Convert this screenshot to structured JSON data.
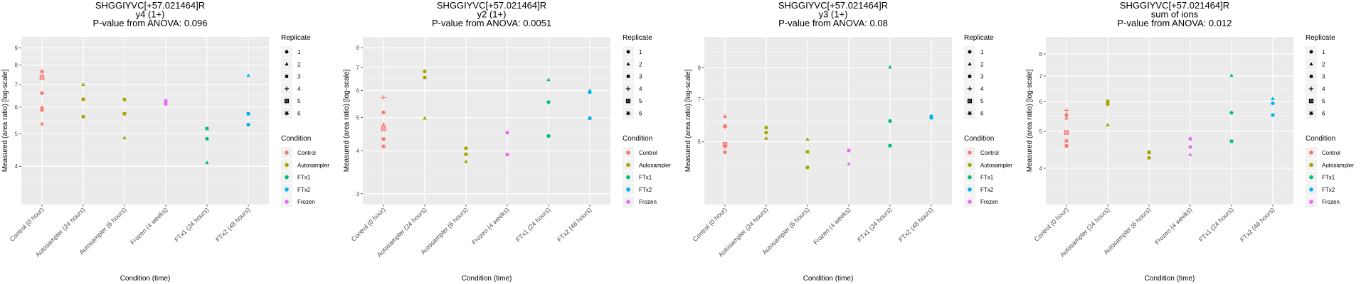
{
  "shared": {
    "xlabel": "Condition (time)",
    "ylabel": "Measured (area ratio) [log-scale]",
    "categories": [
      "Control (0 hour)",
      "Autosampler (24 hours)",
      "Autosampler (6 hours)",
      "Frozen (4 weeks)",
      "FTx1 (24 hours)",
      "FTx2 (48 hours)"
    ],
    "replicate_legend": {
      "title": "Replicate",
      "items": [
        {
          "label": "1",
          "shape": "circle"
        },
        {
          "label": "2",
          "shape": "triangle"
        },
        {
          "label": "3",
          "shape": "square"
        },
        {
          "label": "4",
          "shape": "plus"
        },
        {
          "label": "5",
          "shape": "square-cross"
        },
        {
          "label": "6",
          "shape": "asterisk"
        }
      ]
    },
    "condition_legend": {
      "title": "Condition",
      "items": [
        {
          "label": "Control",
          "color": "#F8766D"
        },
        {
          "label": "Autosampler",
          "color": "#A3A500"
        },
        {
          "label": "FTx1",
          "color": "#00BF7D"
        },
        {
          "label": "FTx2",
          "color": "#00B0F6"
        },
        {
          "label": "Frozen",
          "color": "#E76BF3"
        }
      ]
    }
  },
  "chart_data": [
    {
      "type": "scatter",
      "title": [
        "SHGGIYVC[+57.021464]R",
        "y4 (1+)",
        "P-value from ANOVA: 0.096"
      ],
      "xlabel": "Condition (time)",
      "ylabel": "Measured (area ratio) [log-scale]",
      "yscale": "log",
      "ylim": [
        3.08,
        9.7
      ],
      "yticks": [
        4,
        5,
        6,
        7,
        8,
        9
      ],
      "grid": true,
      "legend": "right",
      "points": [
        {
          "cat": 0,
          "cond": "Control",
          "rep": 1,
          "y": 6.6
        },
        {
          "cat": 0,
          "cond": "Control",
          "rep": 2,
          "y": 5.35
        },
        {
          "cat": 0,
          "cond": "Control",
          "rep": 3,
          "y": 5.88
        },
        {
          "cat": 0,
          "cond": "Control",
          "rep": 4,
          "y": 5.98
        },
        {
          "cat": 0,
          "cond": "Control",
          "rep": 5,
          "y": 7.35
        },
        {
          "cat": 0,
          "cond": "Control",
          "rep": 6,
          "y": 7.65
        },
        {
          "cat": 1,
          "cond": "Autosampler",
          "rep": 1,
          "y": 5.62
        },
        {
          "cat": 1,
          "cond": "Autosampler",
          "rep": 2,
          "y": 7.0
        },
        {
          "cat": 1,
          "cond": "Autosampler",
          "rep": 3,
          "y": 6.33
        },
        {
          "cat": 2,
          "cond": "Autosampler",
          "rep": 1,
          "y": 6.32
        },
        {
          "cat": 2,
          "cond": "Autosampler",
          "rep": 2,
          "y": 4.86
        },
        {
          "cat": 2,
          "cond": "Autosampler",
          "rep": 3,
          "y": 5.73
        },
        {
          "cat": 3,
          "cond": "Frozen",
          "rep": 1,
          "y": 6.13
        },
        {
          "cat": 3,
          "cond": "Frozen",
          "rep": 2,
          "y": 6.28
        },
        {
          "cat": 3,
          "cond": "Frozen",
          "rep": 3,
          "y": 6.24
        },
        {
          "cat": 4,
          "cond": "FTx1",
          "rep": 1,
          "y": 4.83
        },
        {
          "cat": 4,
          "cond": "FTx1",
          "rep": 2,
          "y": 4.1
        },
        {
          "cat": 4,
          "cond": "FTx1",
          "rep": 3,
          "y": 5.18
        },
        {
          "cat": 5,
          "cond": "FTx2",
          "rep": 1,
          "y": 5.32
        },
        {
          "cat": 5,
          "cond": "FTx2",
          "rep": 2,
          "y": 7.45
        },
        {
          "cat": 5,
          "cond": "FTx2",
          "rep": 3,
          "y": 5.73
        }
      ]
    },
    {
      "type": "scatter",
      "title": [
        "SHGGIYVC[+57.021464]R",
        "y2 (1+)",
        "P-value from ANOVA: 0.0051"
      ],
      "xlabel": "Condition (time)",
      "ylabel": "Measured (area ratio) [log-scale]",
      "yscale": "log",
      "ylim": [
        2.79,
        8.6
      ],
      "yticks": [
        3,
        4,
        5,
        6,
        7,
        8
      ],
      "grid": true,
      "legend": "right",
      "points": [
        {
          "cat": 0,
          "cond": "Control",
          "rep": 1,
          "y": 5.18
        },
        {
          "cat": 0,
          "cond": "Control",
          "rep": 2,
          "y": 4.78
        },
        {
          "cat": 0,
          "cond": "Control",
          "rep": 3,
          "y": 4.33
        },
        {
          "cat": 0,
          "cond": "Control",
          "rep": 4,
          "y": 5.72
        },
        {
          "cat": 0,
          "cond": "Control",
          "rep": 5,
          "y": 4.64
        },
        {
          "cat": 0,
          "cond": "Control",
          "rep": 6,
          "y": 4.12
        },
        {
          "cat": 1,
          "cond": "Autosampler",
          "rep": 1,
          "y": 6.82
        },
        {
          "cat": 1,
          "cond": "Autosampler",
          "rep": 2,
          "y": 4.98
        },
        {
          "cat": 1,
          "cond": "Autosampler",
          "rep": 3,
          "y": 6.55
        },
        {
          "cat": 2,
          "cond": "Autosampler",
          "rep": 1,
          "y": 4.07
        },
        {
          "cat": 2,
          "cond": "Autosampler",
          "rep": 2,
          "y": 3.72
        },
        {
          "cat": 2,
          "cond": "Autosampler",
          "rep": 3,
          "y": 3.91
        },
        {
          "cat": 3,
          "cond": "Frozen",
          "rep": 1,
          "y": 3.9
        },
        {
          "cat": 3,
          "cond": "Frozen",
          "rep": 3,
          "y": 4.52
        },
        {
          "cat": 4,
          "cond": "FTx1",
          "rep": 1,
          "y": 5.55
        },
        {
          "cat": 4,
          "cond": "FTx1",
          "rep": 2,
          "y": 6.45
        },
        {
          "cat": 4,
          "cond": "FTx1",
          "rep": 3,
          "y": 4.42
        },
        {
          "cat": 5,
          "cond": "FTx2",
          "rep": 1,
          "y": 5.93
        },
        {
          "cat": 5,
          "cond": "FTx2",
          "rep": 2,
          "y": 6.0
        },
        {
          "cat": 5,
          "cond": "FTx2",
          "rep": 3,
          "y": 4.98
        }
      ]
    },
    {
      "type": "scatter",
      "title": [
        "SHGGIYVC[+57.021464]R",
        "y3 (1+)",
        "P-value from ANOVA: 0.08"
      ],
      "xlabel": "Condition (time)",
      "ylabel": "Measured (area ratio) [log-scale]",
      "yscale": "log",
      "ylim": [
        3.04,
        11.5
      ],
      "yticks": [
        5,
        7,
        9
      ],
      "grid": true,
      "legend": "right",
      "points": [
        {
          "cat": 0,
          "cond": "Control",
          "rep": 1,
          "y": 5.67
        },
        {
          "cat": 0,
          "cond": "Control",
          "rep": 2,
          "y": 6.12
        },
        {
          "cat": 0,
          "cond": "Control",
          "rep": 3,
          "y": 4.6
        },
        {
          "cat": 0,
          "cond": "Control",
          "rep": 4,
          "y": 5.62
        },
        {
          "cat": 0,
          "cond": "Control",
          "rep": 5,
          "y": 4.9
        },
        {
          "cat": 0,
          "cond": "Control",
          "rep": 6,
          "y": 4.82
        },
        {
          "cat": 1,
          "cond": "Autosampler",
          "rep": 1,
          "y": 5.38
        },
        {
          "cat": 1,
          "cond": "Autosampler",
          "rep": 2,
          "y": 5.14
        },
        {
          "cat": 1,
          "cond": "Autosampler",
          "rep": 3,
          "y": 5.6
        },
        {
          "cat": 2,
          "cond": "Autosampler",
          "rep": 1,
          "y": 4.08
        },
        {
          "cat": 2,
          "cond": "Autosampler",
          "rep": 2,
          "y": 5.1
        },
        {
          "cat": 2,
          "cond": "Autosampler",
          "rep": 3,
          "y": 4.62
        },
        {
          "cat": 3,
          "cond": "Frozen",
          "rep": 1,
          "y": 4.67
        },
        {
          "cat": 3,
          "cond": "Frozen",
          "rep": 2,
          "y": 4.2
        },
        {
          "cat": 4,
          "cond": "FTx1",
          "rep": 1,
          "y": 5.9
        },
        {
          "cat": 4,
          "cond": "FTx1",
          "rep": 2,
          "y": 9.05
        },
        {
          "cat": 4,
          "cond": "FTx1",
          "rep": 3,
          "y": 4.85
        },
        {
          "cat": 5,
          "cond": "FTx2",
          "rep": 1,
          "y": 6.05
        },
        {
          "cat": 5,
          "cond": "FTx2",
          "rep": 3,
          "y": 6.12
        }
      ]
    },
    {
      "type": "scatter",
      "title": [
        "SHGGIYVC[+57.021464]R",
        "sum of ions",
        "P-value from ANOVA: 0.012"
      ],
      "xlabel": "Condition (time)",
      "ylabel": "Measured (area ratio) [log-scale]",
      "yscale": "log",
      "ylim": [
        3.21,
        8.87
      ],
      "yticks": [
        4,
        5,
        6,
        7,
        8
      ],
      "grid": true,
      "legend": "right",
      "points": [
        {
          "cat": 0,
          "cond": "Control",
          "rep": 1,
          "y": 5.52
        },
        {
          "cat": 0,
          "cond": "Control",
          "rep": 2,
          "y": 5.42
        },
        {
          "cat": 0,
          "cond": "Control",
          "rep": 3,
          "y": 4.58
        },
        {
          "cat": 0,
          "cond": "Control",
          "rep": 4,
          "y": 5.68
        },
        {
          "cat": 0,
          "cond": "Control",
          "rep": 5,
          "y": 4.97
        },
        {
          "cat": 0,
          "cond": "Control",
          "rep": 6,
          "y": 4.72
        },
        {
          "cat": 1,
          "cond": "Autosampler",
          "rep": 1,
          "y": 5.9
        },
        {
          "cat": 1,
          "cond": "Autosampler",
          "rep": 2,
          "y": 5.2
        },
        {
          "cat": 1,
          "cond": "Autosampler",
          "rep": 3,
          "y": 6.0
        },
        {
          "cat": 2,
          "cond": "Autosampler",
          "rep": 1,
          "y": 4.26
        },
        {
          "cat": 2,
          "cond": "Autosampler",
          "rep": 2,
          "y": 4.42
        },
        {
          "cat": 2,
          "cond": "Autosampler",
          "rep": 3,
          "y": 4.4
        },
        {
          "cat": 3,
          "cond": "Frozen",
          "rep": 1,
          "y": 4.55
        },
        {
          "cat": 3,
          "cond": "Frozen",
          "rep": 2,
          "y": 4.34
        },
        {
          "cat": 3,
          "cond": "Frozen",
          "rep": 3,
          "y": 4.78
        },
        {
          "cat": 4,
          "cond": "FTx1",
          "rep": 1,
          "y": 5.6
        },
        {
          "cat": 4,
          "cond": "FTx1",
          "rep": 2,
          "y": 7.02
        },
        {
          "cat": 4,
          "cond": "FTx1",
          "rep": 3,
          "y": 4.71
        },
        {
          "cat": 5,
          "cond": "FTx2",
          "rep": 1,
          "y": 5.93
        },
        {
          "cat": 5,
          "cond": "FTx2",
          "rep": 2,
          "y": 6.1
        },
        {
          "cat": 5,
          "cond": "FTx2",
          "rep": 3,
          "y": 5.52
        }
      ]
    }
  ]
}
